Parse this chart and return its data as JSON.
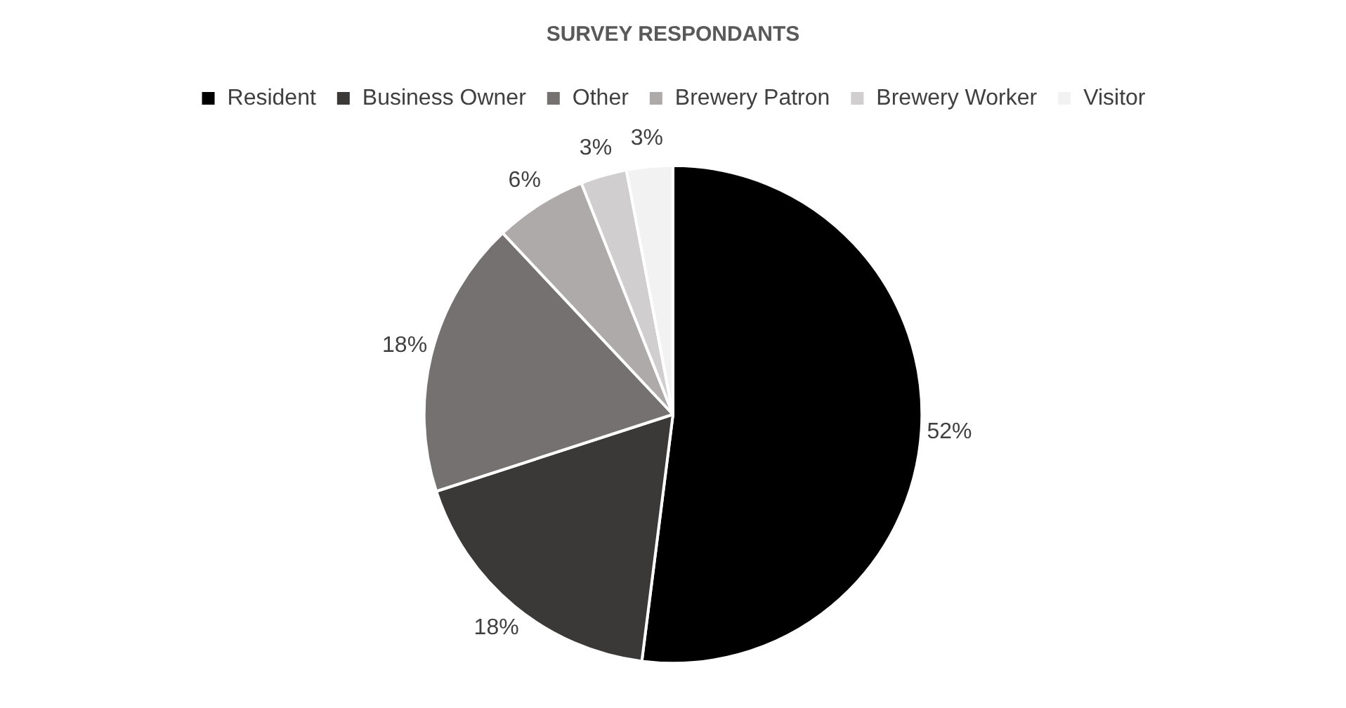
{
  "chart_data": {
    "type": "pie",
    "title": "SURVEY RESPONDANTS",
    "categories": [
      "Resident",
      "Business Owner",
      "Other",
      "Brewery Patron",
      "Brewery Worker",
      "Visitor"
    ],
    "values": [
      52,
      18,
      18,
      6,
      3,
      3
    ],
    "value_labels": [
      "52%",
      "18%",
      "18%",
      "6%",
      "3%",
      "3%"
    ],
    "colors": [
      "#000000",
      "#3b3838",
      "#767171",
      "#aeaaaa",
      "#d0cece",
      "#f2f2f2"
    ],
    "legend": "top"
  }
}
